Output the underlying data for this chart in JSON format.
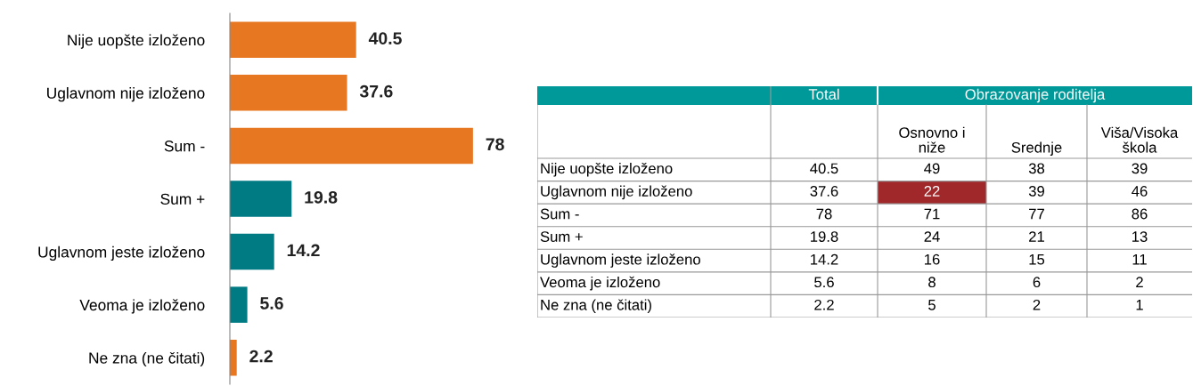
{
  "chart_data": [
    {
      "type": "bar",
      "orientation": "horizontal",
      "data_labels": true,
      "categories": [
        "Nije uopšte izloženo",
        "Uglavnom nije izloženo",
        "Sum -",
        "Sum +",
        "Uglavnom jeste izloženo",
        "Veoma je izloženo",
        "Ne zna (ne čitati)"
      ],
      "values": [
        40.5,
        37.6,
        78,
        19.8,
        14.2,
        5.6,
        2.2
      ],
      "colors": [
        "#e87722",
        "#e87722",
        "#e87722",
        "#007b83",
        "#007b83",
        "#007b83",
        "#e87722"
      ]
    },
    {
      "type": "heatmap",
      "title": "Obrazovanje roditelja",
      "data_labels": true,
      "annotations": [
        "Total"
      ],
      "categories": [
        null,
        "Osnovno i\nniže",
        "Srednje",
        "Viša/Visoka\nškola"
      ],
      "y_categories": [
        "Nije uopšte izloženo",
        "Uglavnom nije izloženo",
        "Sum -",
        "Sum +",
        "Uglavnom jeste izloženo",
        "Veoma je izloženo",
        "Ne zna (ne čitati)"
      ],
      "cells": [
        [
          40.5,
          49,
          38,
          39
        ],
        [
          37.6,
          22,
          39,
          46
        ],
        [
          78,
          71,
          77,
          86
        ],
        [
          19.8,
          24,
          21,
          13
        ],
        [
          14.2,
          16,
          15,
          11
        ],
        [
          5.6,
          8,
          6,
          2
        ],
        [
          2.2,
          5,
          2,
          1
        ]
      ],
      "colors": [
        [
          "#ffffff",
          "#ffffff",
          "#ffffff",
          "#ffffff"
        ],
        [
          "#ffffff",
          "#a0282b",
          "#ffffff",
          "#ffffff"
        ],
        [
          "#ffffff",
          "#ffffff",
          "#ffffff",
          "#ffffff"
        ],
        [
          "#ffffff",
          "#ffffff",
          "#ffffff",
          "#ffffff"
        ],
        [
          "#ffffff",
          "#ffffff",
          "#ffffff",
          "#ffffff"
        ],
        [
          "#ffffff",
          "#ffffff",
          "#ffffff",
          "#ffffff"
        ],
        [
          "#ffffff",
          "#ffffff",
          "#ffffff",
          "#ffffff"
        ]
      ]
    }
  ]
}
